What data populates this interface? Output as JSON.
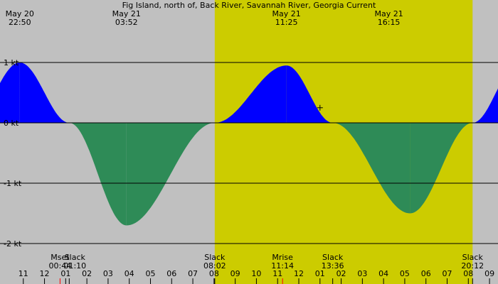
{
  "chart_data": {
    "type": "area",
    "title": "Fig Island, north of, Back River, Savannah River, Georgia Current",
    "x_unit": "hour",
    "y_unit": "kt",
    "ylim": [
      -2,
      1.5
    ],
    "y_ticks": [
      {
        "value": 1,
        "label": "1 kt"
      },
      {
        "value": 0,
        "label": "0 kt"
      },
      {
        "value": -1,
        "label": "-1 kt"
      },
      {
        "value": -2,
        "label": "-2 kt"
      }
    ],
    "x_ticks": [
      "11",
      "12",
      "01",
      "02",
      "03",
      "04",
      "05",
      "06",
      "07",
      "08",
      "09",
      "10",
      "11",
      "12",
      "01",
      "02",
      "03",
      "04",
      "05",
      "06",
      "07",
      "08",
      "09"
    ],
    "daylight": {
      "start": "08:02",
      "end": "20:12"
    },
    "colors": {
      "night": "#c0c0c0",
      "day": "#cccc00",
      "flood": "#0000ff",
      "ebb": "#2e8b57"
    },
    "top_labels": [
      {
        "date": "May 20",
        "time": "22:50"
      },
      {
        "date": "May 21",
        "time": "03:52"
      },
      {
        "date": "May 21",
        "time": "11:25"
      },
      {
        "date": "May 21",
        "time": "16:15"
      }
    ],
    "events": [
      {
        "name": "Mset",
        "time": "00:44"
      },
      {
        "name": "Slack",
        "time": "01:10"
      },
      {
        "name": "Slack",
        "time": "08:02"
      },
      {
        "name": "Mrise",
        "time": "11:14"
      },
      {
        "name": "Slack",
        "time": "13:36"
      },
      {
        "name": "Slack",
        "time": "20:12"
      }
    ],
    "series": [
      {
        "x": [
          22.83,
          25.17,
          27.87,
          32.03,
          35.42,
          37.6,
          41.25,
          44.2
        ],
        "y": [
          1.0,
          0.0,
          -1.7,
          0.0,
          0.95,
          0.0,
          -1.5,
          0.0
        ]
      }
    ],
    "current_marker": {
      "x": 37.0,
      "y": 0.25
    }
  }
}
